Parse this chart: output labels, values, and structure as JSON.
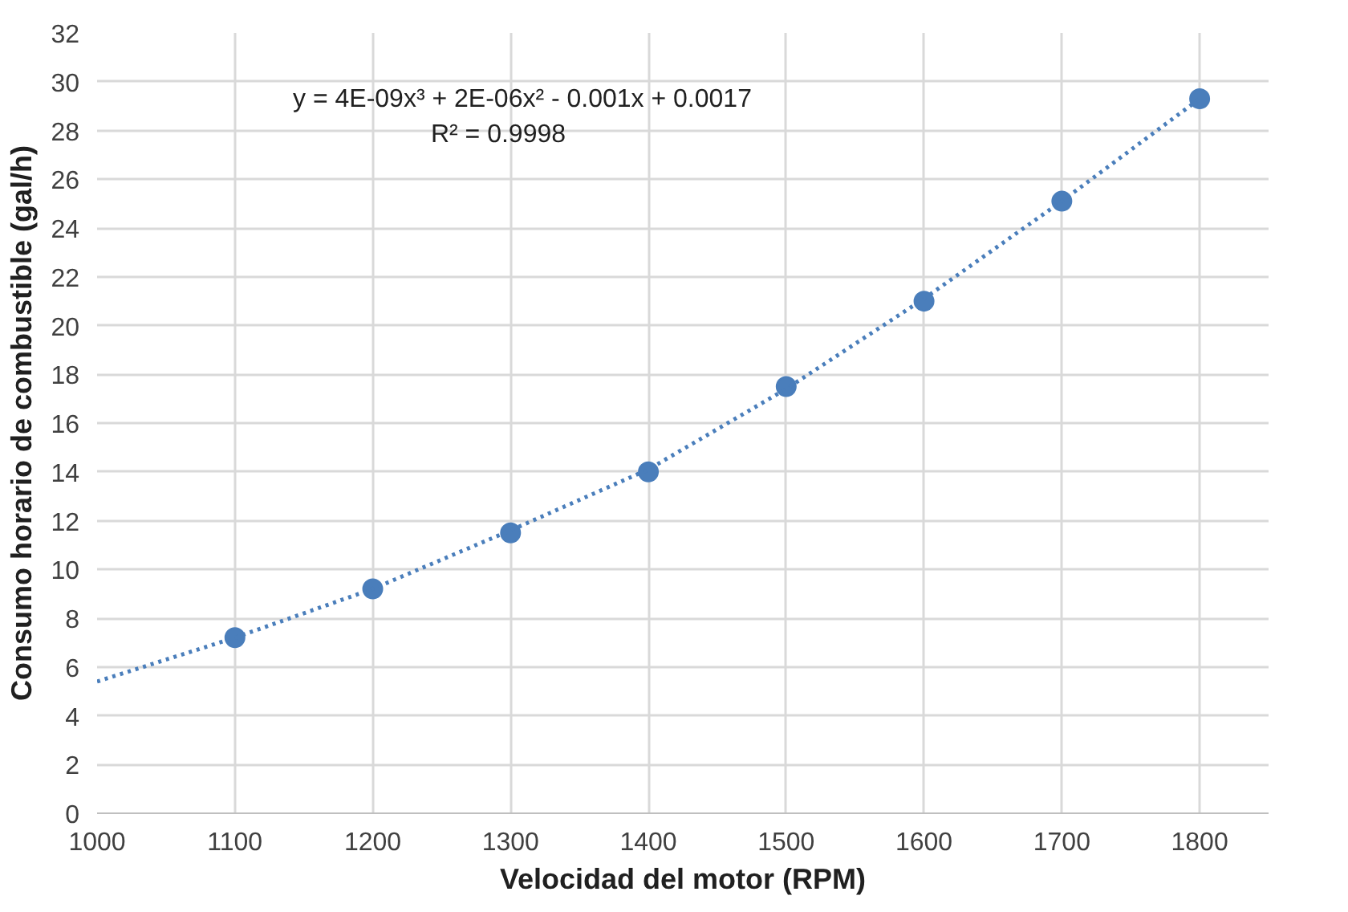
{
  "chart_data": {
    "type": "scatter",
    "xlabel": "Velocidad del motor (RPM)",
    "ylabel": "Consumo horario de combustible (gal/h)",
    "x": [
      1100,
      1200,
      1300,
      1400,
      1500,
      1600,
      1700,
      1800
    ],
    "series": [
      {
        "color": "#4a7ebb",
        "marker": "circle",
        "values": [
          7.2,
          9.2,
          11.5,
          14.0,
          17.5,
          21.0,
          25.1,
          29.3
        ]
      },
      {
        "type": "line",
        "color": "#4a7ebb",
        "line_style": "dotted",
        "x": [
          1000,
          1100,
          1200,
          1300,
          1400,
          1500,
          1600,
          1700,
          1800
        ],
        "values": [
          5.4,
          7.2,
          9.2,
          11.6,
          14.1,
          17.4,
          21.1,
          25.1,
          29.3
        ]
      }
    ],
    "annotations": [
      "y = 4E-09x³ + 2E-06x² - 0.001x + 0.0017",
      "R² = 0.9998"
    ],
    "xlim": [
      1000,
      1850
    ],
    "xticks": [
      1000,
      1100,
      1200,
      1300,
      1400,
      1500,
      1600,
      1700,
      1800
    ],
    "ylim": [
      0,
      32
    ],
    "yticks": [
      0,
      2,
      4,
      6,
      8,
      10,
      12,
      14,
      16,
      18,
      20,
      22,
      24,
      26,
      28,
      30,
      32
    ],
    "grid": true
  }
}
